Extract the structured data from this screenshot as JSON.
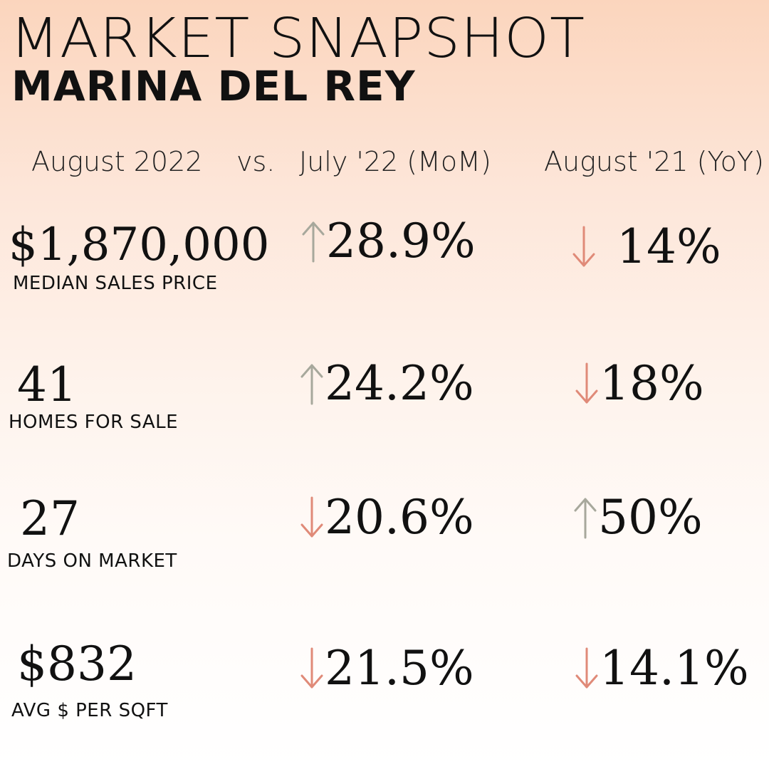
{
  "header": {
    "title": "MARKET SNAPSHOT",
    "subtitle": "MARINA DEL REY"
  },
  "columns": {
    "current": "August 2022",
    "vs": "vs.",
    "mom": "July '22 (MoM)",
    "yoy": "August '21 (YoY)"
  },
  "colors": {
    "up_arrow": "#a7a89c",
    "down_arrow": "#e08a78"
  },
  "metrics": [
    {
      "value": "$1,870,000",
      "label": "MEDIAN SALES PRICE",
      "mom": {
        "direction": "up",
        "text": "28.9%",
        "arrow_icon": "arrow-up-icon"
      },
      "yoy": {
        "direction": "down",
        "text": "14%",
        "arrow_icon": "arrow-down-icon"
      }
    },
    {
      "value": "41",
      "label": "HOMES FOR SALE",
      "mom": {
        "direction": "up",
        "text": "24.2%",
        "arrow_icon": "arrow-up-icon"
      },
      "yoy": {
        "direction": "down",
        "text": "18%",
        "arrow_icon": "arrow-down-icon"
      }
    },
    {
      "value": "27",
      "label": "DAYS ON MARKET",
      "mom": {
        "direction": "down",
        "text": "20.6%",
        "arrow_icon": "arrow-down-icon"
      },
      "yoy": {
        "direction": "up",
        "text": "50%",
        "arrow_icon": "arrow-up-icon"
      }
    },
    {
      "value": "$832",
      "label": "AVG $ PER SQFT",
      "mom": {
        "direction": "down",
        "text": "21.5%",
        "arrow_icon": "arrow-down-icon"
      },
      "yoy": {
        "direction": "down",
        "text": "14.1%",
        "arrow_icon": "arrow-down-icon"
      }
    }
  ]
}
